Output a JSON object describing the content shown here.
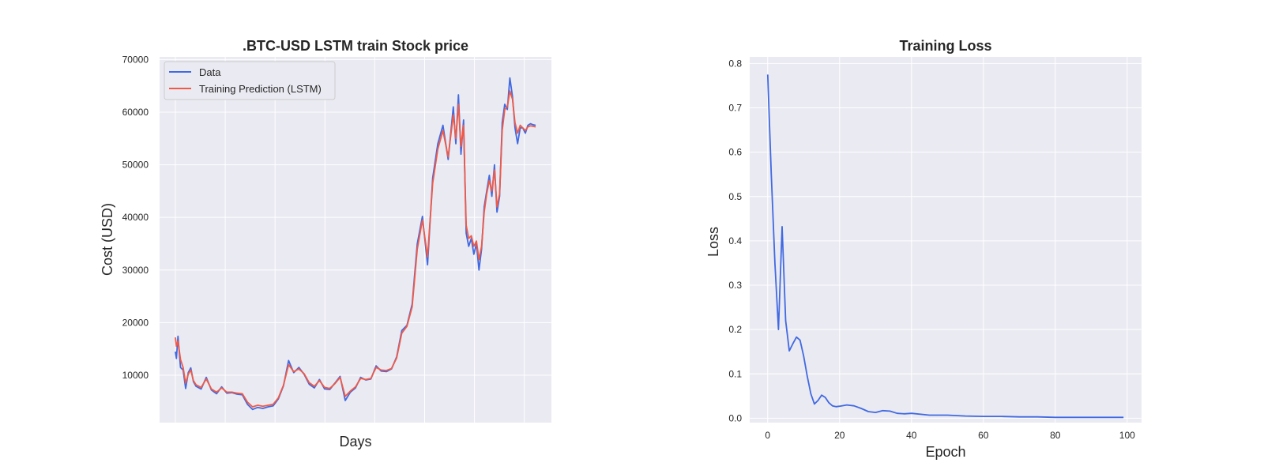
{
  "colors": {
    "data_line": "#4169e1",
    "prediction_line": "#f05a46",
    "loss_line": "#4169e1",
    "axes_background": "#eaeaf2",
    "grid": "#ffffff"
  },
  "chart_data": [
    {
      "type": "line",
      "title": ".BTC-USD LSTM train Stock price",
      "xlabel": "Days",
      "ylabel": "Cost (USD)",
      "x_tick_labels": false,
      "ylim": [
        1000,
        70500
      ],
      "yticks": [
        10000,
        20000,
        30000,
        40000,
        50000,
        60000,
        70000
      ],
      "ytick_labels": [
        "10000",
        "20000",
        "30000",
        "40000",
        "50000",
        "60000",
        "70000"
      ],
      "grid": true,
      "legend": "top-left",
      "x": [
        0,
        2,
        5,
        10,
        15,
        20,
        25,
        30,
        35,
        40,
        50,
        60,
        70,
        80,
        90,
        100,
        110,
        120,
        130,
        140,
        150,
        160,
        170,
        180,
        190,
        200,
        210,
        220,
        230,
        240,
        250,
        260,
        270,
        280,
        290,
        300,
        310,
        320,
        330,
        340,
        350,
        360,
        370,
        380,
        390,
        400,
        410,
        420,
        430,
        440,
        450,
        460,
        470,
        480,
        490,
        500,
        510,
        520,
        530,
        540,
        545,
        550,
        555,
        560,
        565,
        570,
        575,
        580,
        585,
        590,
        595,
        600,
        605,
        610,
        615,
        620,
        625,
        630,
        635,
        640,
        645,
        650,
        655,
        660,
        665,
        670,
        675,
        680,
        685,
        690,
        695,
        700
      ],
      "series": [
        {
          "name": "Data",
          "values": [
            14500,
            13200,
            17400,
            11500,
            11000,
            7500,
            10500,
            11400,
            8800,
            7900,
            7400,
            9600,
            7200,
            6500,
            7800,
            6600,
            6700,
            6400,
            6300,
            4500,
            3500,
            3900,
            3700,
            4000,
            4200,
            5500,
            8000,
            12800,
            10500,
            11500,
            10200,
            8300,
            7600,
            9200,
            7400,
            7300,
            8500,
            9800,
            5200,
            6800,
            7600,
            9600,
            9100,
            9300,
            11800,
            10800,
            10700,
            11200,
            13500,
            18500,
            19500,
            23500,
            35000,
            40200,
            31000,
            47500,
            54000,
            57500,
            51000,
            61000,
            54000,
            63300,
            52000,
            58500,
            37000,
            34500,
            36000,
            33000,
            35000,
            30000,
            34000,
            42000,
            45000,
            48000,
            44000,
            50000,
            41000,
            44000,
            58000,
            61500,
            60500,
            66500,
            63000,
            57000,
            54000,
            57000,
            57000,
            56000,
            57500,
            57800,
            57600,
            57500
          ]
        },
        {
          "name": "Training Prediction (LSTM)",
          "values": [
            17200,
            15500,
            16500,
            13000,
            11500,
            8500,
            10200,
            11000,
            9000,
            8200,
            7700,
            9300,
            7400,
            6800,
            7600,
            6800,
            6800,
            6600,
            6500,
            4900,
            4000,
            4300,
            4100,
            4300,
            4500,
            5700,
            8100,
            12000,
            10700,
            11200,
            10300,
            8600,
            7900,
            9000,
            7700,
            7500,
            8400,
            9600,
            6000,
            7000,
            7800,
            9400,
            9200,
            9400,
            11500,
            11000,
            10900,
            11300,
            13300,
            18000,
            19300,
            23000,
            34000,
            39500,
            32500,
            46500,
            53000,
            56500,
            51500,
            59500,
            55000,
            61500,
            53500,
            57500,
            38500,
            36000,
            36500,
            34500,
            35500,
            32000,
            34500,
            41000,
            44500,
            47000,
            45000,
            49000,
            42000,
            44500,
            56500,
            60500,
            61000,
            64000,
            62500,
            58000,
            56000,
            57500,
            57000,
            56500,
            57200,
            57400,
            57300,
            57200
          ]
        }
      ]
    },
    {
      "type": "line",
      "title": "Training Loss",
      "xlabel": "Epoch",
      "ylabel": "Loss",
      "xlim": [
        -5,
        104
      ],
      "ylim": [
        -0.01,
        0.815
      ],
      "xticks": [
        0,
        20,
        40,
        60,
        80,
        100
      ],
      "xtick_labels": [
        "0",
        "20",
        "40",
        "60",
        "80",
        "100"
      ],
      "yticks": [
        0.0,
        0.1,
        0.2,
        0.3,
        0.4,
        0.5,
        0.6,
        0.7,
        0.8
      ],
      "ytick_labels": [
        "0.0",
        "0.1",
        "0.2",
        "0.3",
        "0.4",
        "0.5",
        "0.6",
        "0.7",
        "0.8"
      ],
      "grid": true,
      "x": [
        0,
        1,
        2,
        3,
        4,
        5,
        6,
        7,
        8,
        9,
        10,
        11,
        12,
        13,
        14,
        15,
        16,
        17,
        18,
        19,
        20,
        22,
        24,
        26,
        28,
        30,
        32,
        34,
        36,
        38,
        40,
        45,
        50,
        55,
        60,
        65,
        70,
        75,
        80,
        85,
        90,
        95,
        99
      ],
      "series": [
        {
          "values": [
            0.775,
            0.55,
            0.35,
            0.2,
            0.432,
            0.22,
            0.152,
            0.168,
            0.183,
            0.176,
            0.14,
            0.095,
            0.055,
            0.032,
            0.04,
            0.052,
            0.047,
            0.035,
            0.028,
            0.026,
            0.027,
            0.03,
            0.028,
            0.022,
            0.015,
            0.013,
            0.017,
            0.016,
            0.011,
            0.01,
            0.011,
            0.007,
            0.007,
            0.005,
            0.004,
            0.004,
            0.003,
            0.003,
            0.002,
            0.002,
            0.002,
            0.002,
            0.002
          ]
        }
      ]
    }
  ]
}
